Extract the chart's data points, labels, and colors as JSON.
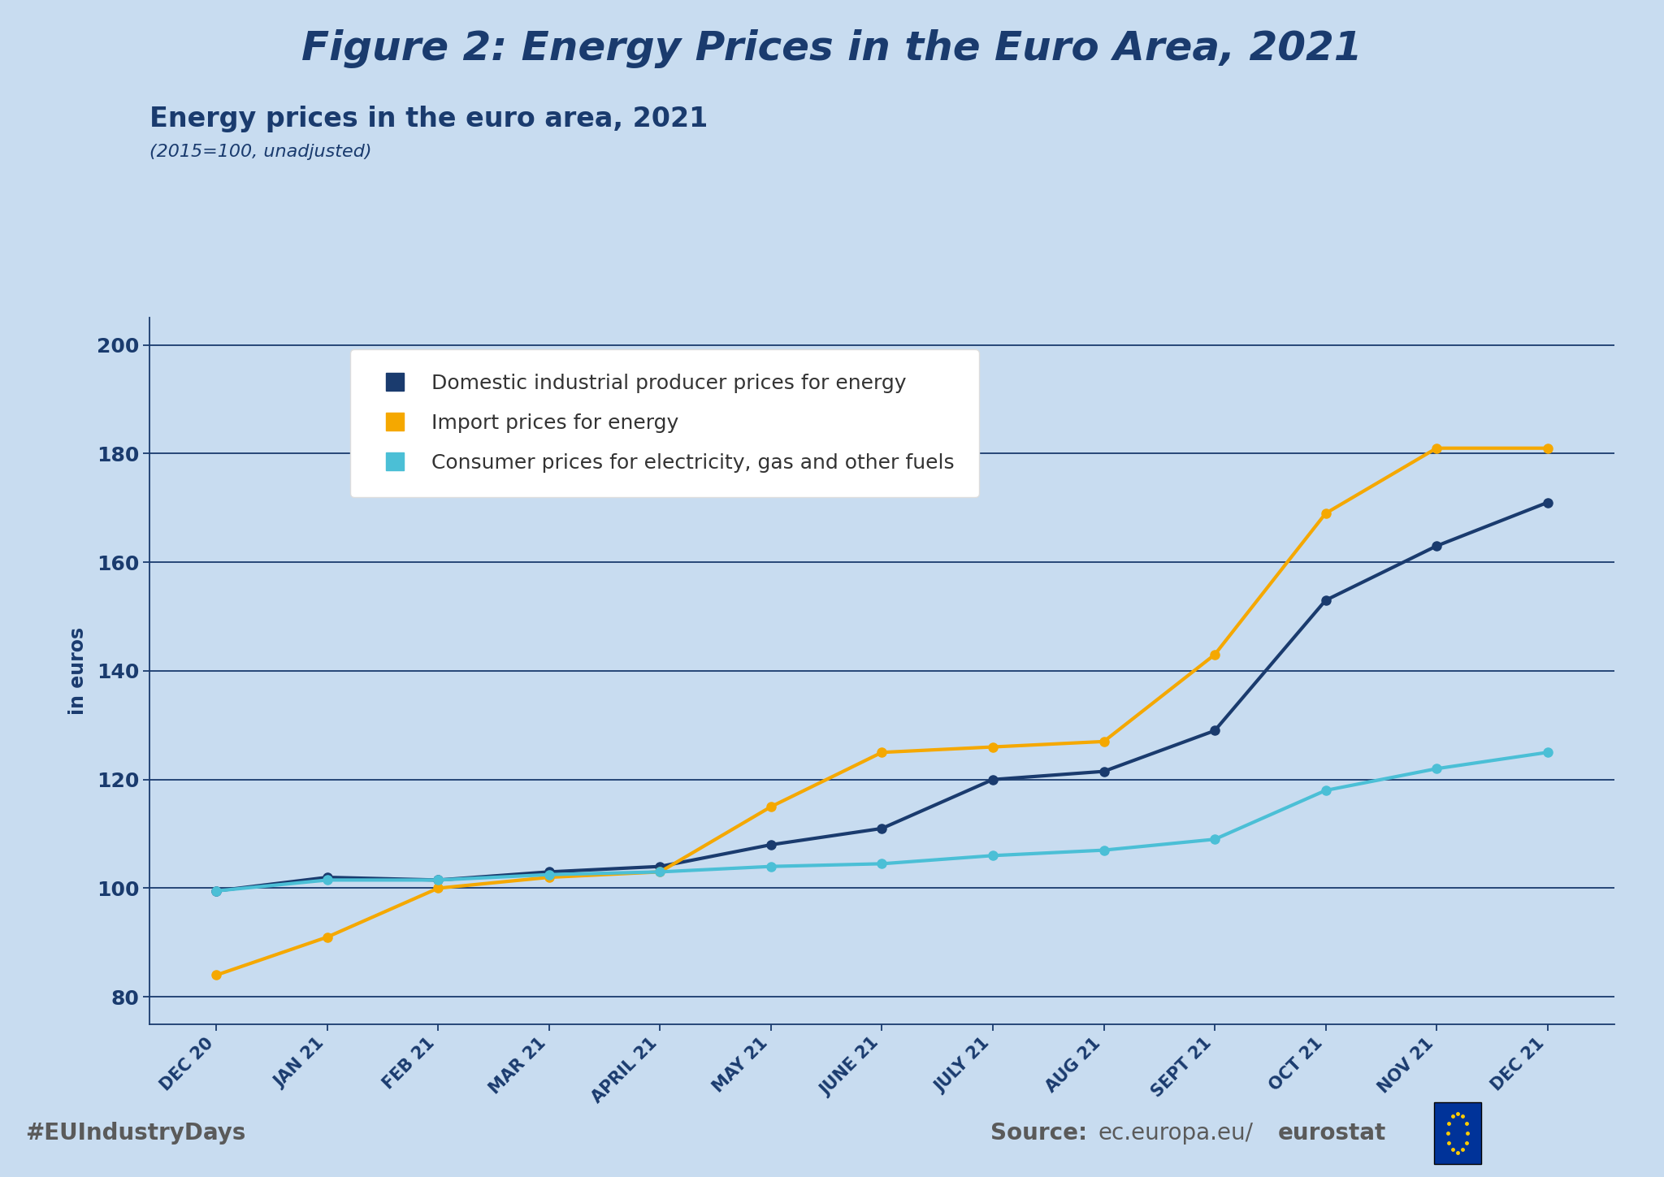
{
  "title": "Figure 2: Energy Prices in the Euro Area, 2021",
  "subtitle": "Energy prices in the euro area, 2021",
  "subtitle2": "(2015=100, unadjusted)",
  "ylabel": "in euros",
  "background_color": "#C8DCF0",
  "footer_bg_color": "#FFFFFF",
  "footer_left": "#EUIndustryDays",
  "categories": [
    "DEC 20",
    "JAN 21",
    "FEB 21",
    "MAR 21",
    "APRIL 21",
    "MAY 21",
    "JUNE 21",
    "JULY 21",
    "AUG 21",
    "SEPT 21",
    "OCT 21",
    "NOV 21",
    "DEC 21"
  ],
  "domestic_values": [
    99.5,
    102,
    101.5,
    103,
    104,
    108,
    111,
    120,
    121.5,
    129,
    153,
    163,
    171
  ],
  "import_values": [
    84,
    91,
    100,
    102,
    103,
    115,
    125,
    126,
    127,
    143,
    169,
    181,
    181
  ],
  "consumer_values": [
    99.5,
    101.5,
    101.5,
    102.5,
    103,
    104,
    104.5,
    106,
    107,
    109,
    118,
    122,
    125
  ],
  "domestic_color": "#1A3B6E",
  "import_color": "#F5A800",
  "consumer_color": "#4BBFD6",
  "domestic_label": "Domestic industrial producer prices for energy",
  "import_label": "Import prices for energy",
  "consumer_label": "Consumer prices for electricity, gas and other fuels",
  "ylim_min": 75,
  "ylim_max": 205,
  "yticks": [
    80,
    100,
    120,
    140,
    160,
    180,
    200
  ],
  "grid_color": "#1A3B6E",
  "title_color": "#1A3B6E",
  "title_fontsize": 36,
  "subtitle_fontsize": 24,
  "subtitle2_fontsize": 16,
  "footer_text_color": "#666666",
  "footer_fontsize": 20,
  "line_width": 3.0,
  "marker_size": 8
}
